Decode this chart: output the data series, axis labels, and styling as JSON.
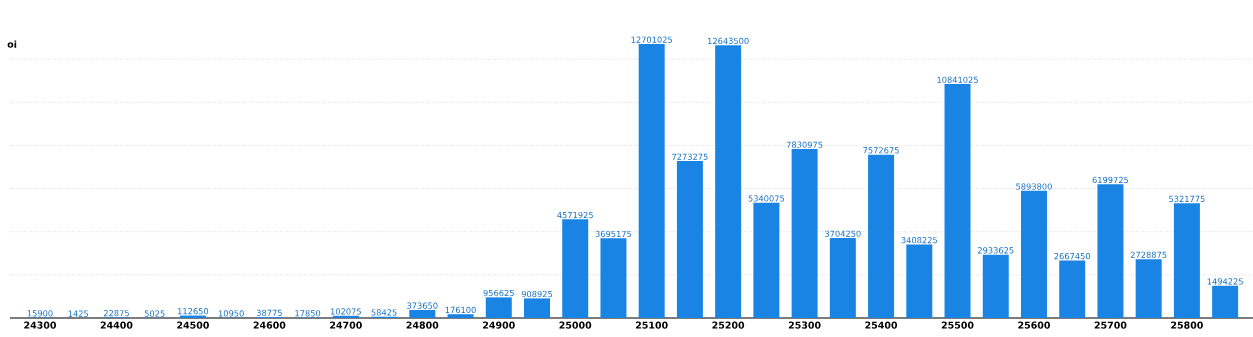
{
  "chart_data": {
    "type": "bar",
    "ylabel": "oi",
    "categories": [
      "24300",
      null,
      "24400",
      null,
      "24500",
      null,
      "24600",
      null,
      "24700",
      null,
      "24800",
      null,
      "24900",
      null,
      "25000",
      null,
      "25100",
      null,
      "25200",
      null,
      "25300",
      null,
      "25400",
      null,
      "25500",
      null,
      "25600",
      null,
      "25700",
      null,
      "25800",
      null
    ],
    "values": [
      15900,
      1425,
      22875,
      5025,
      112650,
      10950,
      38775,
      17850,
      102075,
      58425,
      373650,
      176100,
      956625,
      908925,
      4571925,
      3695175,
      12701025,
      7273275,
      12643500,
      5340075,
      7830975,
      3704250,
      7572675,
      3408225,
      10841025,
      2933625,
      5893800,
      2667450,
      6199725,
      2728875,
      5321775,
      1494225
    ],
    "color": "#1a84e5",
    "grid": "y",
    "data_labels": true
  }
}
